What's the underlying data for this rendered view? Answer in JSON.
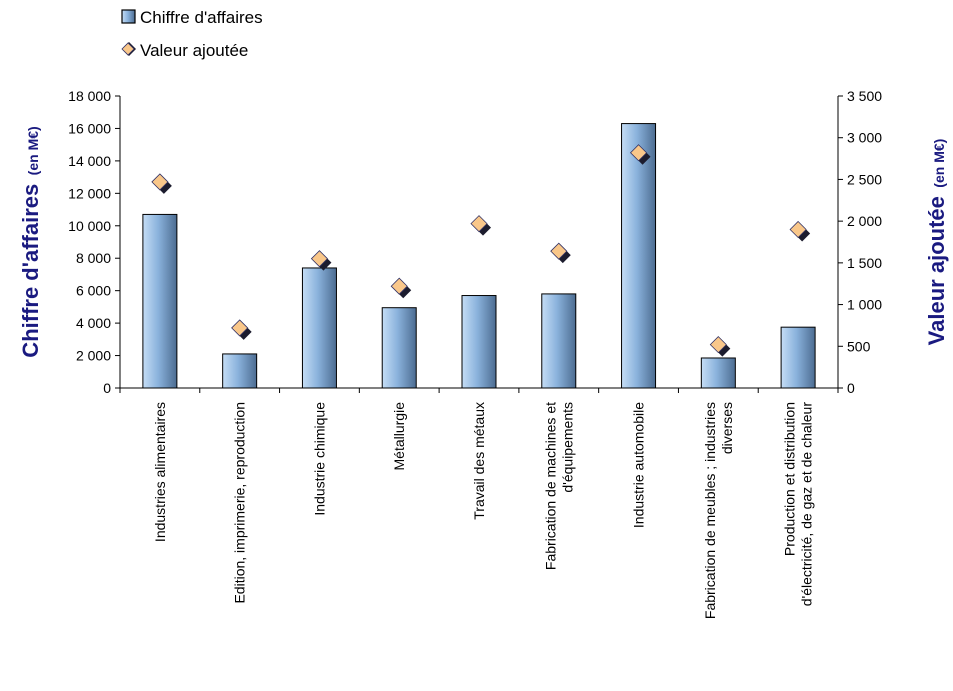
{
  "chart_data": {
    "type": "bar",
    "categories": [
      [
        "Industries alimentaires"
      ],
      [
        "Edition, imprimerie, reproduction"
      ],
      [
        "Industrie chimique"
      ],
      [
        "Métallurgie"
      ],
      [
        "Travail des métaux"
      ],
      [
        "Fabrication de machines et",
        "d'équipements"
      ],
      [
        "Industrie automobile"
      ],
      [
        "Fabrication de meubles ; industries",
        "diverses"
      ],
      [
        "Production et distribution",
        "d'électricité, de gaz et de chaleur"
      ]
    ],
    "series": [
      {
        "name": "Chiffre d'affaires",
        "type": "bar",
        "axis": "left",
        "values": [
          10700,
          2100,
          7400,
          4950,
          5700,
          5800,
          16300,
          1850,
          3750
        ]
      },
      {
        "name": "Valeur ajoutée",
        "type": "scatter",
        "axis": "right",
        "values": [
          2470,
          720,
          1550,
          1220,
          1970,
          1640,
          2820,
          520,
          1900
        ]
      }
    ],
    "y_left": {
      "title": "Chiffre d'affaires",
      "unit": "(en M€)",
      "ylim": [
        0,
        18000
      ],
      "ticks": [
        "0",
        "2 000",
        "4 000",
        "6 000",
        "8 000",
        "10 000",
        "12 000",
        "14 000",
        "16 000",
        "18 000"
      ]
    },
    "y_right": {
      "title": "Valeur ajoutée",
      "unit": "(en M€)",
      "ylim": [
        0,
        3500
      ],
      "ticks": [
        "0",
        "500",
        "1 000",
        "1 500",
        "2 000",
        "2 500",
        "3 000",
        "3 500"
      ]
    },
    "legend_position": "top-left",
    "grid": false,
    "colors": {
      "bar_light": "#c5ddf5",
      "bar_mid": "#8ab2dc",
      "bar_dark": "#4c6c91",
      "marker_fill": "#f9c78a",
      "marker_shadow": "#1c1c2e",
      "axis_title": "#1a1a80"
    }
  }
}
